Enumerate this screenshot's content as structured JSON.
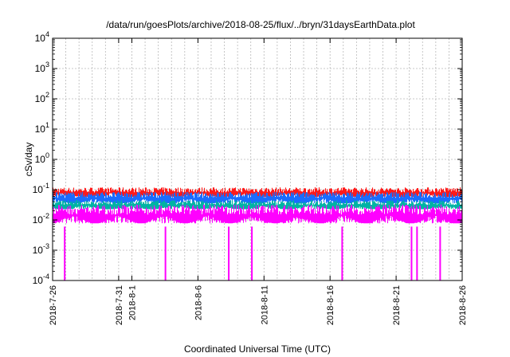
{
  "chart_data": {
    "type": "line",
    "title": "/data/run/goesPlots/archive/2018-08-25/flux/../bryn/31daysEarthData.plot",
    "xlabel": "Coordinated Universal Time (UTC)",
    "ylabel": "cSv/day",
    "yscale": "log",
    "ylim": [
      0.0001,
      10000
    ],
    "y_ticks": [
      {
        "value": 0.0001,
        "base": "10",
        "exp": "-4"
      },
      {
        "value": 0.001,
        "base": "10",
        "exp": "-3"
      },
      {
        "value": 0.01,
        "base": "10",
        "exp": "-2"
      },
      {
        "value": 0.1,
        "base": "10",
        "exp": "-1"
      },
      {
        "value": 1,
        "base": "10",
        "exp": "0"
      },
      {
        "value": 10,
        "base": "10",
        "exp": "1"
      },
      {
        "value": 100,
        "base": "10",
        "exp": "2"
      },
      {
        "value": 1000,
        "base": "10",
        "exp": "3"
      },
      {
        "value": 10000,
        "base": "10",
        "exp": "4"
      }
    ],
    "xlim": [
      "2018-07-26",
      "2018-08-26"
    ],
    "x_ticks": [
      "2018-7-26",
      "2018-7-31",
      "2018-8-1",
      "2018-8-6",
      "2018-8-11",
      "2018-8-16",
      "2018-8-21",
      "2018-8-26"
    ],
    "grid": true,
    "series": [
      {
        "color": "#ff1a1a",
        "level_low": 0.05,
        "level_high": 0.12
      },
      {
        "color": "#1a6cff",
        "level_low": 0.03,
        "level_high": 0.085
      },
      {
        "color": "#00b3a4",
        "level_low": 0.02,
        "level_high": 0.045
      },
      {
        "color": "#ff00ff",
        "level_low": 0.006,
        "level_high": 0.032,
        "dropouts": [
          "2018-07-26T22:00",
          "2018-08-03T13:00",
          "2018-08-08T08:00",
          "2018-08-10T02:00",
          "2018-08-16T22:00",
          "2018-08-22T04:00",
          "2018-08-22T14:00",
          "2018-08-24T08:00"
        ]
      }
    ]
  }
}
